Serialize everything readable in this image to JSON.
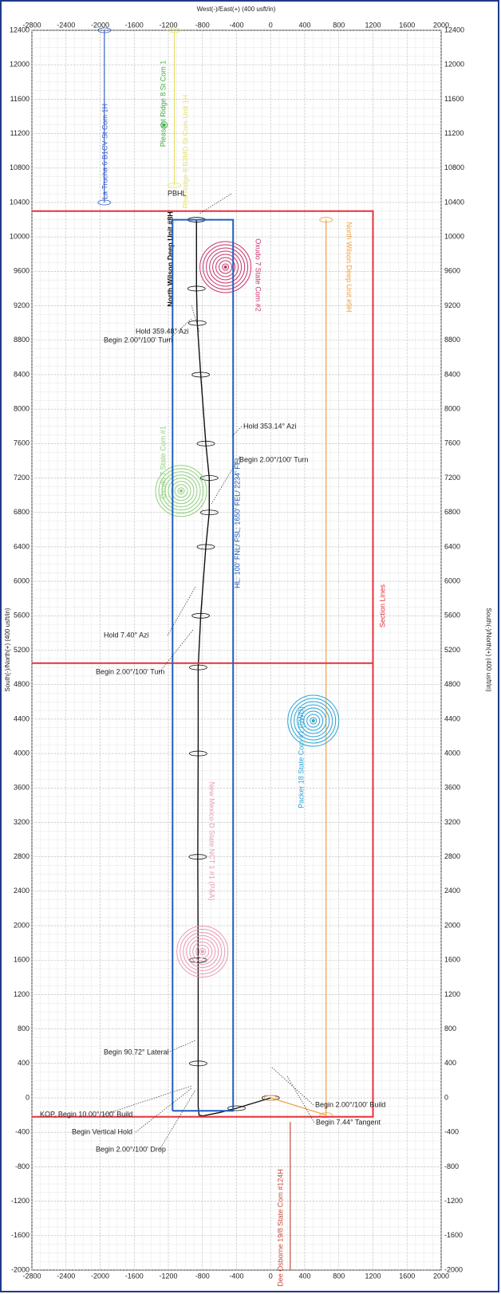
{
  "chart_data": {
    "type": "line",
    "x_label": "West(-)/East(+) (400 usft/in)",
    "y_label": "South(-)/North(+) (400 usft/in)",
    "xlim": [
      -2800,
      2000
    ],
    "ylim": [
      -2000,
      12400
    ],
    "xticks": [
      -2800,
      -2400,
      -2000,
      -1600,
      -1200,
      -800,
      -400,
      0,
      400,
      800,
      1200,
      1600,
      2000
    ],
    "yticks": [
      -2000,
      -1600,
      -1200,
      -800,
      -400,
      0,
      400,
      800,
      1200,
      1600,
      2000,
      2400,
      2800,
      3200,
      3600,
      4000,
      4400,
      4800,
      5200,
      5600,
      6000,
      6400,
      6800,
      7200,
      7600,
      8000,
      8400,
      8800,
      9200,
      9600,
      10000,
      10400,
      10800,
      11200,
      11600,
      12000,
      12400
    ],
    "grid": true,
    "series": [
      {
        "name": "La Trucha 6 B1CV St Com 1H",
        "color": "#3a5fc8",
        "mode": "line",
        "x": [
          -1950,
          -1950
        ],
        "y": [
          10400,
          12400
        ]
      },
      {
        "name": "Pleasant Ridge 8 St Com 1",
        "color": "#3fae3f",
        "mode": "point",
        "x": [
          -1250
        ],
        "y": [
          11300
        ]
      },
      {
        "name": "Red Ridge 8 B3MD St Com Unit 1H",
        "color": "#e8e06a",
        "mode": "line",
        "x": [
          -1130,
          -1130
        ],
        "y": [
          10600,
          12400
        ]
      },
      {
        "name": "North Wilson Deep Unit #8H",
        "color": "#111111",
        "mode": "line",
        "x": [
          0,
          -200,
          -400,
          -600,
          -800,
          -840,
          -850,
          -850,
          -850,
          -855,
          -850,
          -850,
          -820,
          -760,
          -720,
          -720,
          -760,
          -820,
          -860,
          -870,
          -870
        ],
        "y": [
          0,
          -60,
          -120,
          -170,
          -210,
          -200,
          -100,
          400,
          1600,
          2800,
          4000,
          5000,
          5600,
          6400,
          6800,
          7200,
          7600,
          8400,
          9000,
          9400,
          10200
        ]
      },
      {
        "name": "Oxudo 7 State Com #2",
        "color": "#c8336e",
        "mode": "point",
        "x": [
          -530
        ],
        "y": [
          9650
        ]
      },
      {
        "name": "North Wilson Deep Unit #9H",
        "color": "#f0a040",
        "mode": "line",
        "x": [
          0,
          650,
          650
        ],
        "y": [
          0,
          -200,
          10200
        ]
      },
      {
        "name": "Oxudo 7 State Com #1",
        "color": "#8fd07a",
        "mode": "point",
        "x": [
          -1050
        ],
        "y": [
          7050
        ]
      },
      {
        "name": "Packer 18 State Com #1 (SWD)",
        "color": "#2aa3d8",
        "mode": "point",
        "x": [
          500
        ],
        "y": [
          4380
        ]
      },
      {
        "name": "New Mexico D State NCT 1 #1 (P&A)",
        "color": "#e89ab4",
        "mode": "point",
        "x": [
          -800
        ],
        "y": [
          1700
        ]
      },
      {
        "name": "Dee Osborne 19/8 State Com #124H",
        "color": "#c84a3a",
        "mode": "line",
        "x": [
          230,
          230
        ],
        "y": [
          -280,
          -2000
        ]
      },
      {
        "name": "Section Lines",
        "color": "#e8303a",
        "mode": "line",
        "x": [
          -2800,
          1200,
          1200,
          -2800,
          null,
          -2800,
          1200
        ],
        "y": [
          10300,
          10300,
          -220,
          -220,
          null,
          5050,
          5050
        ]
      },
      {
        "name": "HL: 100' FNL/ FSL; 1650' FEL/ 2234' FEL",
        "color": "#1f5fbf",
        "mode": "line",
        "x": [
          -1150,
          -440,
          -440,
          -1150,
          -1150
        ],
        "y": [
          -150,
          -150,
          10200,
          10200,
          -150
        ]
      }
    ],
    "annotations": [
      "PBHL",
      "Hold 359.48° Azi",
      "Begin 2.00°/100' Turn",
      "Hold 353.14° Azi",
      "Begin 2.00°/100' Turn",
      "Hold 7.40° Azi",
      "Begin 2.00°/100' Turn",
      "Begin 90.72° Lateral",
      "KOP, Begin 10.00°/100' Build",
      "Begin Vertical Hold",
      "Begin 2.00°/100' Drop",
      "Begin 2.00°/100' Build",
      "Begin 7.44° Tangent"
    ]
  }
}
